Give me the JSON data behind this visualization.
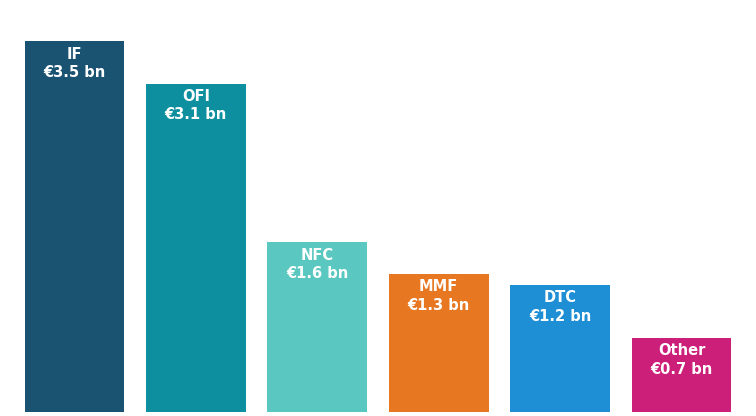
{
  "categories": [
    "IF",
    "OFI",
    "NFC",
    "MMF",
    "DTC",
    "Other"
  ],
  "values": [
    3.5,
    3.1,
    1.6,
    1.3,
    1.2,
    0.7
  ],
  "labels": [
    "IF\n€3.5 bn",
    "OFI\n€3.1 bn",
    "NFC\n€1.6 bn",
    "MMF\n€1.3 bn",
    "DTC\n€1.2 bn",
    "Other\n€0.7 bn"
  ],
  "colors": [
    "#1a5272",
    "#0e8fa0",
    "#5ac8c0",
    "#e87722",
    "#1e8fd5",
    "#cc1f7a"
  ],
  "bar_width": 0.82,
  "ylim": [
    0,
    3.85
  ],
  "background_color": "#ffffff",
  "label_fontsize": 10.5,
  "label_color": "#ffffff"
}
